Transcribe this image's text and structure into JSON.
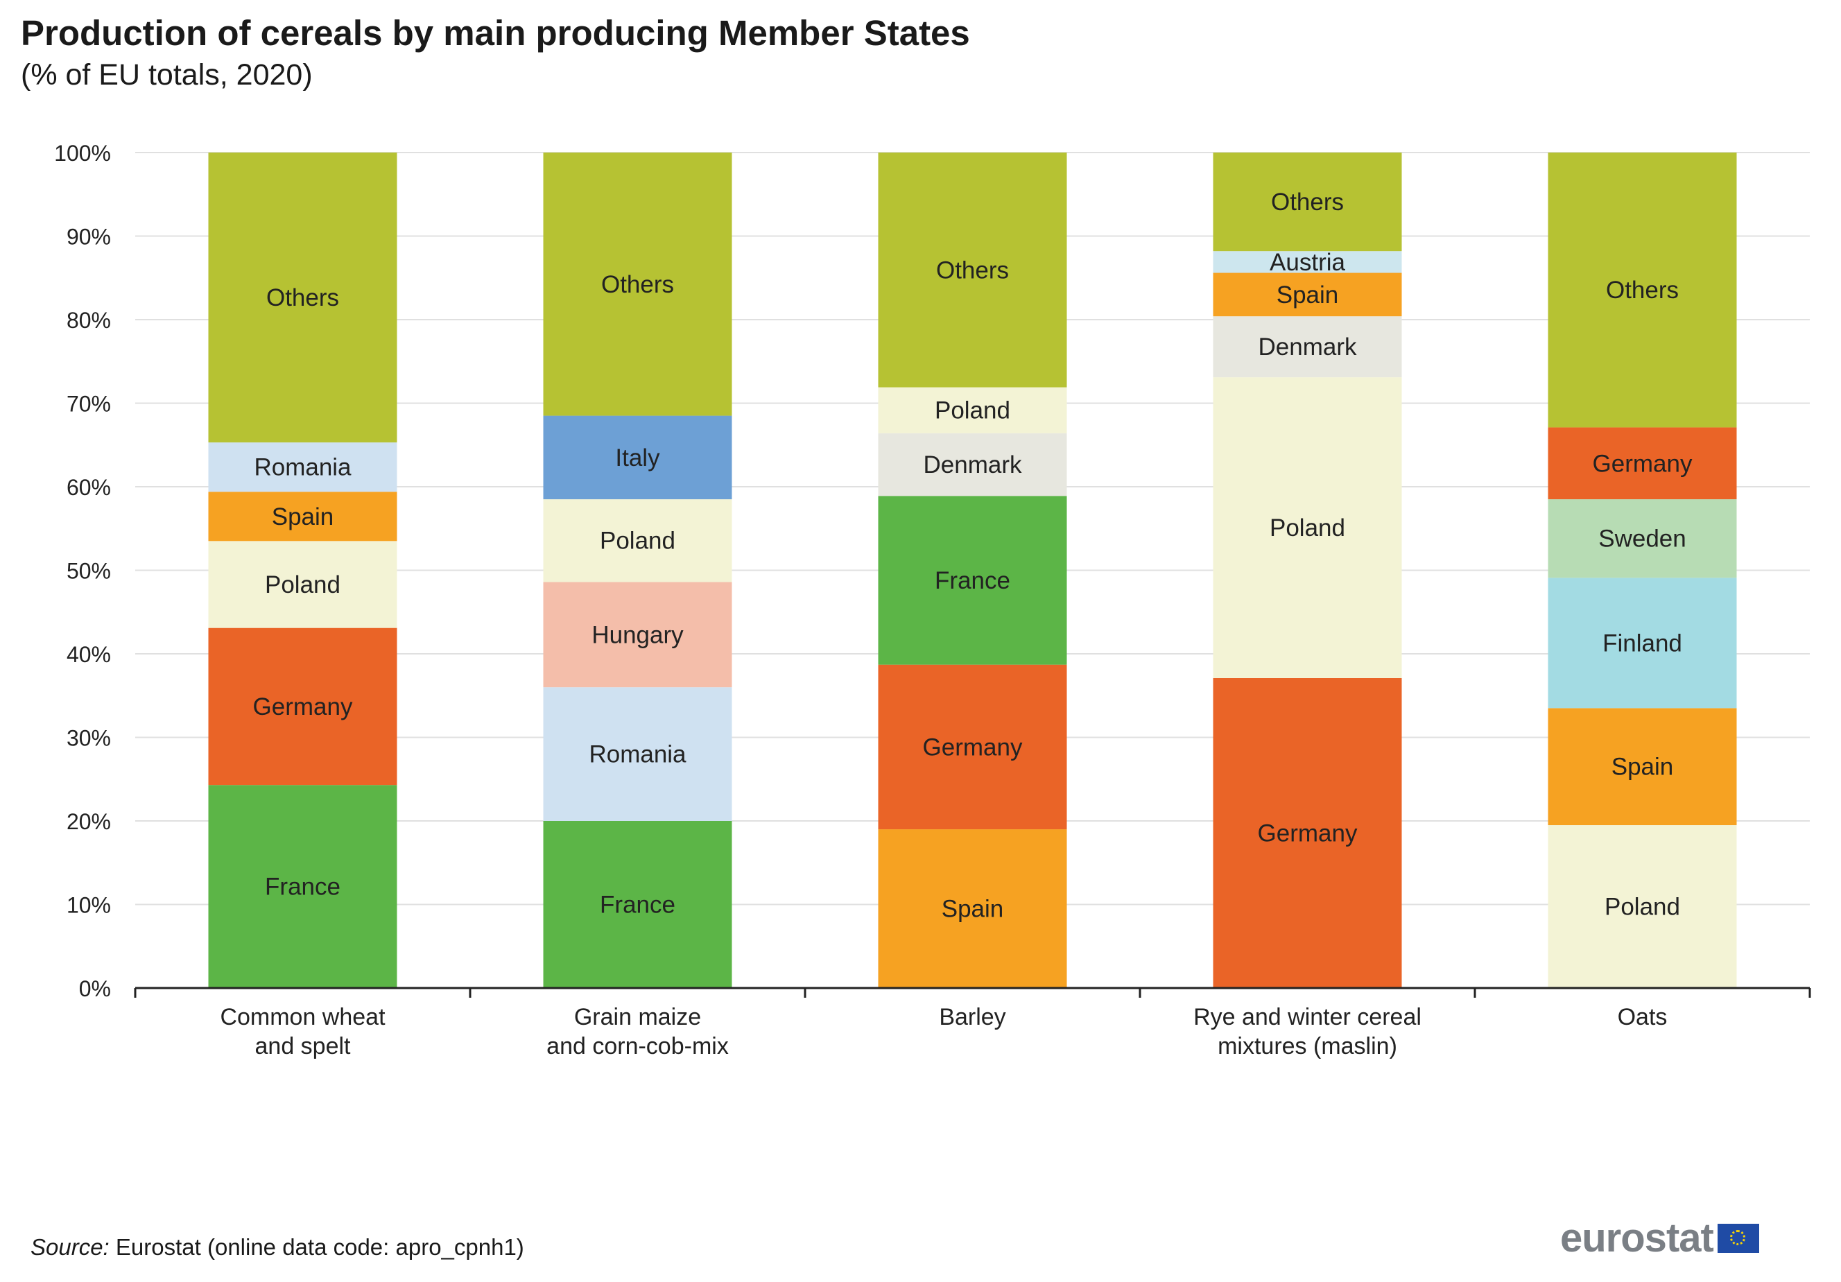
{
  "header": {
    "title": "Production of cereals by main producing Member States",
    "subtitle": "(% of EU totals, 2020)"
  },
  "footer": {
    "source_label": "Source:",
    "source_text": "Eurostat (online data code: apro_cpnh1)",
    "logo_text": "eurostat",
    "logo_icon": "eu-flag-icon"
  },
  "colors": {
    "France": "#5cb547",
    "Germany": "#ea6427",
    "Poland": "#f3f3d5",
    "Spain": "#f6a222",
    "Romania": "#cfe1f1",
    "Others": "#b6c233",
    "Hungary": "#f4beaa",
    "Italy": "#6da0d5",
    "Denmark": "#e7e7df",
    "Austria": "#cde6ee",
    "Sweden": "#b7dcb4",
    "Finland": "#a3dbe3",
    "axis": "#222222",
    "grid": "#e0e0e0"
  },
  "chart_data": {
    "type": "bar",
    "stacked": true,
    "title": "Production of cereals by main producing Member States",
    "subtitle": "(% of EU totals, 2020)",
    "xlabel": "",
    "ylabel": "",
    "ylim": [
      0,
      100
    ],
    "yticks": [
      0,
      10,
      20,
      30,
      40,
      50,
      60,
      70,
      80,
      90,
      100
    ],
    "ytick_suffix": "%",
    "grid": true,
    "categories": [
      [
        "Common wheat",
        "and spelt"
      ],
      [
        "Grain maize",
        "and corn-cob-mix"
      ],
      [
        "Barley"
      ],
      [
        "Rye and winter cereal",
        "mixtures (maslin)"
      ],
      [
        "Oats"
      ]
    ],
    "bars": [
      {
        "segments": [
          {
            "name": "France",
            "value": 24.3
          },
          {
            "name": "Germany",
            "value": 18.8
          },
          {
            "name": "Poland",
            "value": 10.4
          },
          {
            "name": "Spain",
            "value": 5.9
          },
          {
            "name": "Romania",
            "value": 5.9
          },
          {
            "name": "Others",
            "value": 34.7
          }
        ]
      },
      {
        "segments": [
          {
            "name": "France",
            "value": 20.0
          },
          {
            "name": "Romania",
            "value": 16.0
          },
          {
            "name": "Hungary",
            "value": 12.6
          },
          {
            "name": "Poland",
            "value": 9.9
          },
          {
            "name": "Italy",
            "value": 10.0
          },
          {
            "name": "Others",
            "value": 31.5
          }
        ]
      },
      {
        "segments": [
          {
            "name": "Spain",
            "value": 19.0
          },
          {
            "name": "Germany",
            "value": 19.7
          },
          {
            "name": "France",
            "value": 20.2
          },
          {
            "name": "Denmark",
            "value": 7.5
          },
          {
            "name": "Poland",
            "value": 5.5
          },
          {
            "name": "Others",
            "value": 28.1
          }
        ]
      },
      {
        "segments": [
          {
            "name": "Germany",
            "value": 37.1
          },
          {
            "name": "Poland",
            "value": 36.0
          },
          {
            "name": "Denmark",
            "value": 7.3
          },
          {
            "name": "Spain",
            "value": 5.2
          },
          {
            "name": "Austria",
            "value": 2.6
          },
          {
            "name": "Others",
            "value": 11.8
          }
        ]
      },
      {
        "segments": [
          {
            "name": "Poland",
            "value": 19.5
          },
          {
            "name": "Spain",
            "value": 14.0
          },
          {
            "name": "Finland",
            "value": 15.6
          },
          {
            "name": "Sweden",
            "value": 9.4
          },
          {
            "name": "Germany",
            "value": 8.6
          },
          {
            "name": "Others",
            "value": 32.9
          }
        ]
      }
    ]
  }
}
